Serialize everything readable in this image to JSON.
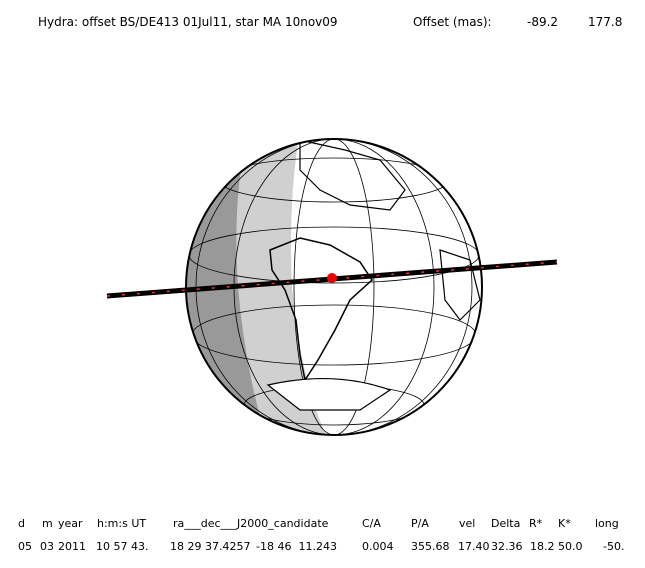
{
  "header": {
    "title": "Hydra: offset BS/DE413 01Jul11, star MA 10nov09",
    "offset_label": "Offset (mas):",
    "offset_x": "-89.2",
    "offset_y": "177.8"
  },
  "table": {
    "columns": [
      "d",
      "m",
      "year",
      "h:m:s UT",
      "ra___dec___J2000_candidate",
      "C/A",
      "P/A",
      "vel",
      "Delta",
      "R*",
      "K*",
      "long"
    ],
    "rows": [
      [
        "05",
        "03",
        "2011",
        "10 57 43.",
        "18 29 37.4257",
        "-18 46  11.243",
        "0.004",
        "355.68",
        "17.40",
        "32.36",
        "18.2",
        "50.0",
        "-50."
      ]
    ]
  }
}
